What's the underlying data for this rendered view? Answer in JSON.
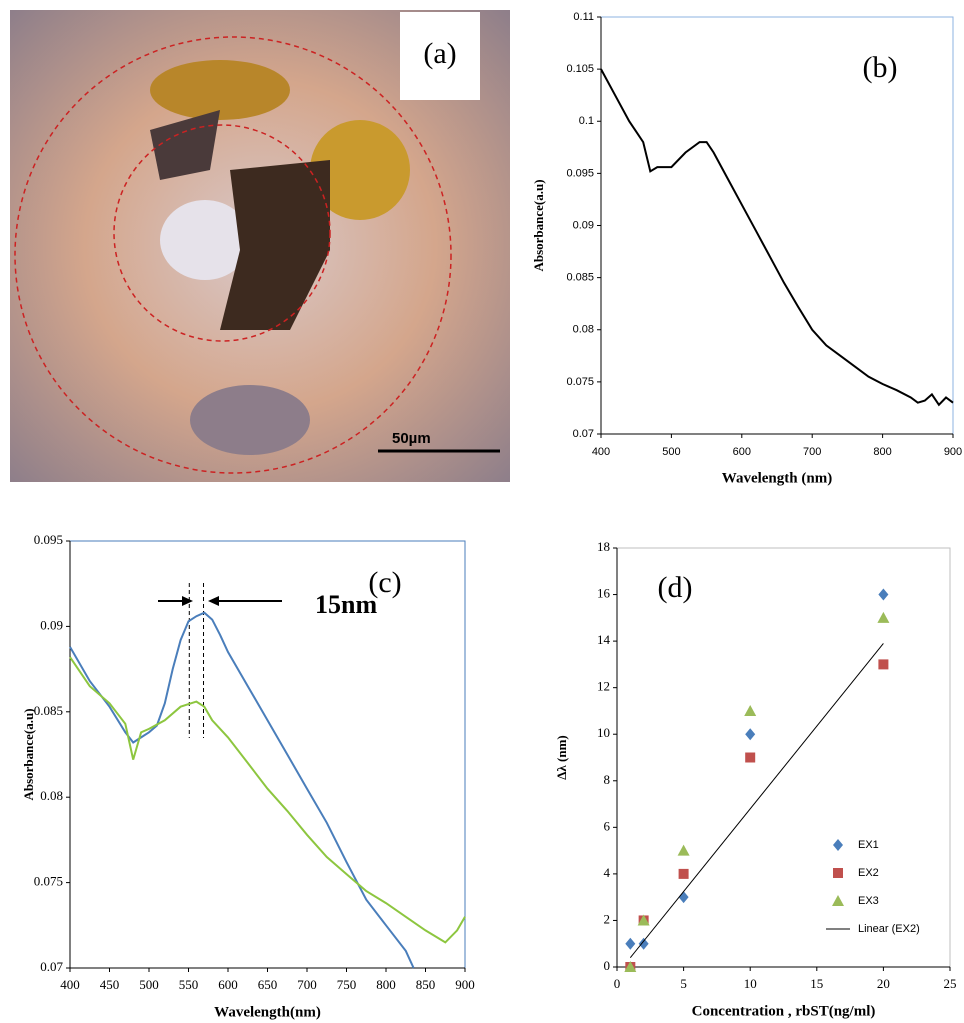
{
  "image_panel": {
    "label": "(a)",
    "scale_bar": "50µm"
  },
  "chart_data": [
    {
      "type": "line",
      "panel_label": "(b)",
      "xlabel": "Wavelength (nm)",
      "ylabel": "Absorbance(a.u)",
      "xlim": [
        400,
        900
      ],
      "xticks": [
        400,
        500,
        600,
        700,
        800,
        900
      ],
      "ylim": [
        0.07,
        0.11
      ],
      "yticks": [
        0.07,
        0.075,
        0.08,
        0.085,
        0.09,
        0.095,
        0.1,
        0.105,
        0.11
      ],
      "series": [
        {
          "color": "#000000",
          "x": [
            400,
            420,
            440,
            460,
            470,
            480,
            500,
            520,
            540,
            550,
            560,
            580,
            600,
            620,
            640,
            660,
            680,
            700,
            720,
            740,
            760,
            780,
            800,
            820,
            840,
            850,
            860,
            870,
            880,
            890,
            900
          ],
          "values": [
            0.105,
            0.1025,
            0.1,
            0.098,
            0.0952,
            0.0956,
            0.0956,
            0.097,
            0.098,
            0.098,
            0.097,
            0.0945,
            0.092,
            0.0895,
            0.087,
            0.0845,
            0.0822,
            0.08,
            0.0785,
            0.0775,
            0.0765,
            0.0755,
            0.0748,
            0.0742,
            0.0735,
            0.073,
            0.0732,
            0.0738,
            0.0728,
            0.0735,
            0.073
          ]
        }
      ]
    },
    {
      "type": "line",
      "panel_label": "(c)",
      "annotation": "15nm",
      "xlabel": "Wavelength(nm)",
      "ylabel": "Absorbance(a.u)",
      "xlim": [
        400,
        900
      ],
      "xticks": [
        400,
        450,
        500,
        550,
        600,
        650,
        700,
        750,
        800,
        850,
        900
      ],
      "ylim": [
        0.07,
        0.095
      ],
      "yticks": [
        0.07,
        0.075,
        0.08,
        0.085,
        0.09,
        0.095
      ],
      "peak_lines": [
        551,
        569
      ],
      "series": [
        {
          "color": "#4a7ebb",
          "x": [
            400,
            425,
            450,
            470,
            480,
            490,
            500,
            510,
            520,
            530,
            540,
            550,
            560,
            570,
            580,
            590,
            600,
            625,
            650,
            675,
            700,
            725,
            750,
            775,
            800,
            825,
            835
          ],
          "values": [
            0.0888,
            0.0868,
            0.0853,
            0.0838,
            0.0832,
            0.0835,
            0.0838,
            0.0842,
            0.0855,
            0.0875,
            0.0892,
            0.0903,
            0.0906,
            0.0908,
            0.0904,
            0.0895,
            0.0885,
            0.0865,
            0.0845,
            0.0825,
            0.0805,
            0.0785,
            0.0762,
            0.074,
            0.0725,
            0.071,
            0.07
          ]
        },
        {
          "color": "#8dc63f",
          "x": [
            400,
            425,
            450,
            470,
            480,
            490,
            500,
            520,
            540,
            560,
            570,
            580,
            600,
            625,
            650,
            675,
            700,
            725,
            750,
            775,
            800,
            825,
            850,
            875,
            890,
            900
          ],
          "values": [
            0.0882,
            0.0865,
            0.0855,
            0.0843,
            0.0822,
            0.0838,
            0.084,
            0.0845,
            0.0853,
            0.0856,
            0.0853,
            0.0845,
            0.0835,
            0.082,
            0.0805,
            0.0792,
            0.0778,
            0.0765,
            0.0755,
            0.0745,
            0.0738,
            0.073,
            0.0722,
            0.0715,
            0.0722,
            0.073
          ]
        }
      ]
    },
    {
      "type": "scatter",
      "panel_label": "(d)",
      "xlabel": "Concentration , rbST(ng/ml)",
      "ylabel": "Δλ (nm)",
      "xlim": [
        0,
        25
      ],
      "xticks": [
        0,
        5,
        10,
        15,
        20,
        25
      ],
      "ylim": [
        0,
        18
      ],
      "yticks": [
        0,
        2,
        4,
        6,
        8,
        10,
        12,
        14,
        16,
        18
      ],
      "x": [
        1,
        2,
        5,
        10,
        20
      ],
      "series": [
        {
          "name": "EX1",
          "color": "#4a7ebb",
          "marker": "diamond",
          "values": [
            1,
            1,
            3,
            10,
            16
          ]
        },
        {
          "name": "EX2",
          "color": "#c0504d",
          "marker": "square",
          "values": [
            0,
            2,
            4,
            9,
            13
          ]
        },
        {
          "name": "EX3",
          "color": "#9bbb59",
          "marker": "triangle",
          "values": [
            0,
            2,
            5,
            11,
            15
          ]
        }
      ],
      "trendline": {
        "name": "Linear (EX2)",
        "color": "#000000",
        "x": [
          1,
          20
        ],
        "values": [
          0.4,
          13.9
        ]
      }
    }
  ]
}
